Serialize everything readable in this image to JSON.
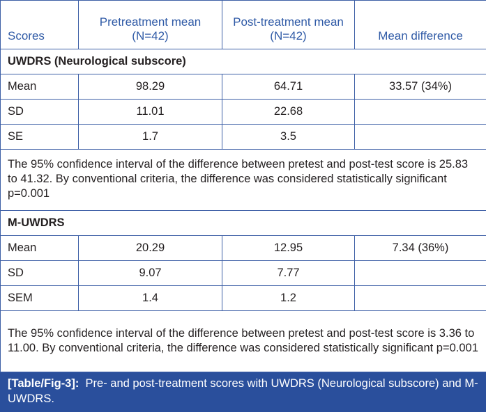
{
  "headers": [
    "Scores",
    "Pretreatment mean (N=42)",
    "Post-treatment mean (N=42)",
    "Mean difference"
  ],
  "sections": [
    {
      "title": "UWDRS (Neurological subscore)",
      "rows": [
        [
          "Mean",
          "98.29",
          "64.71",
          "33.57 (34%)"
        ],
        [
          "SD",
          "11.01",
          "22.68",
          ""
        ],
        [
          "SE",
          "1.7",
          "3.5",
          ""
        ]
      ],
      "note": "The 95% confidence interval of the difference between pretest and post-test score is 25.83 to 41.32. By conventional criteria, the difference was considered statistically significant p=0.001"
    },
    {
      "title": "M-UWDRS",
      "rows": [
        [
          "Mean",
          "20.29",
          "12.95",
          "7.34 (36%)"
        ],
        [
          "SD",
          "9.07",
          "7.77",
          ""
        ],
        [
          "SEM",
          "1.4",
          "1.2",
          ""
        ]
      ],
      "note": "The 95% confidence interval of the difference between pretest and post-test score is 3.36 to 11.00. By conventional criteria, the difference was considered statistically significant p=0.001"
    }
  ],
  "caption": {
    "label": "[Table/Fig-3]:",
    "text": "Pre- and post-treatment scores with UWDRS (Neurological subscore) and M-UWDRS."
  },
  "colors": {
    "header_text": "#2f5aa6",
    "border": "#3d5fa6",
    "caption_bg": "#2a4f9c"
  }
}
